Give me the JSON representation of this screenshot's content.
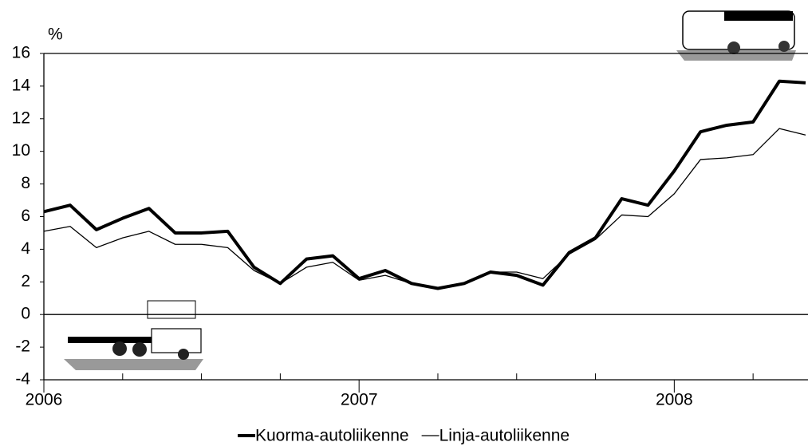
{
  "chart_data": {
    "type": "line",
    "y_unit": "%",
    "categories": [
      "2006",
      null,
      null,
      null,
      null,
      null,
      null,
      null,
      null,
      null,
      null,
      null,
      "2007",
      null,
      null,
      null,
      null,
      null,
      null,
      null,
      null,
      null,
      null,
      null,
      "2008",
      null,
      null,
      null,
      null,
      null
    ],
    "series": [
      {
        "name": "Kuorma-autoliikenne",
        "color": "#000000",
        "width": 4,
        "values": [
          6.3,
          6.7,
          5.2,
          5.9,
          6.5,
          5.0,
          5.0,
          5.1,
          2.9,
          1.9,
          3.4,
          3.6,
          2.2,
          2.7,
          1.9,
          1.6,
          1.9,
          2.6,
          2.4,
          1.8,
          3.8,
          4.7,
          7.1,
          6.7,
          8.8,
          11.2,
          11.6,
          11.8,
          14.3,
          14.2
        ]
      },
      {
        "name": "Linja-autoliikenne",
        "color": "#000000",
        "width": 1.3,
        "values": [
          5.1,
          5.4,
          4.1,
          4.7,
          5.1,
          4.3,
          4.3,
          4.1,
          2.7,
          1.9,
          2.9,
          3.2,
          2.1,
          2.4,
          1.9,
          1.6,
          1.9,
          2.6,
          2.6,
          2.2,
          3.7,
          4.6,
          6.1,
          6.0,
          7.4,
          9.5,
          9.6,
          9.8,
          11.4,
          11.0
        ]
      }
    ],
    "ylim": [
      -4,
      16
    ],
    "yticks": [
      -4,
      -2,
      0,
      2,
      4,
      6,
      8,
      10,
      12,
      14,
      16
    ],
    "legend": "bottom"
  }
}
